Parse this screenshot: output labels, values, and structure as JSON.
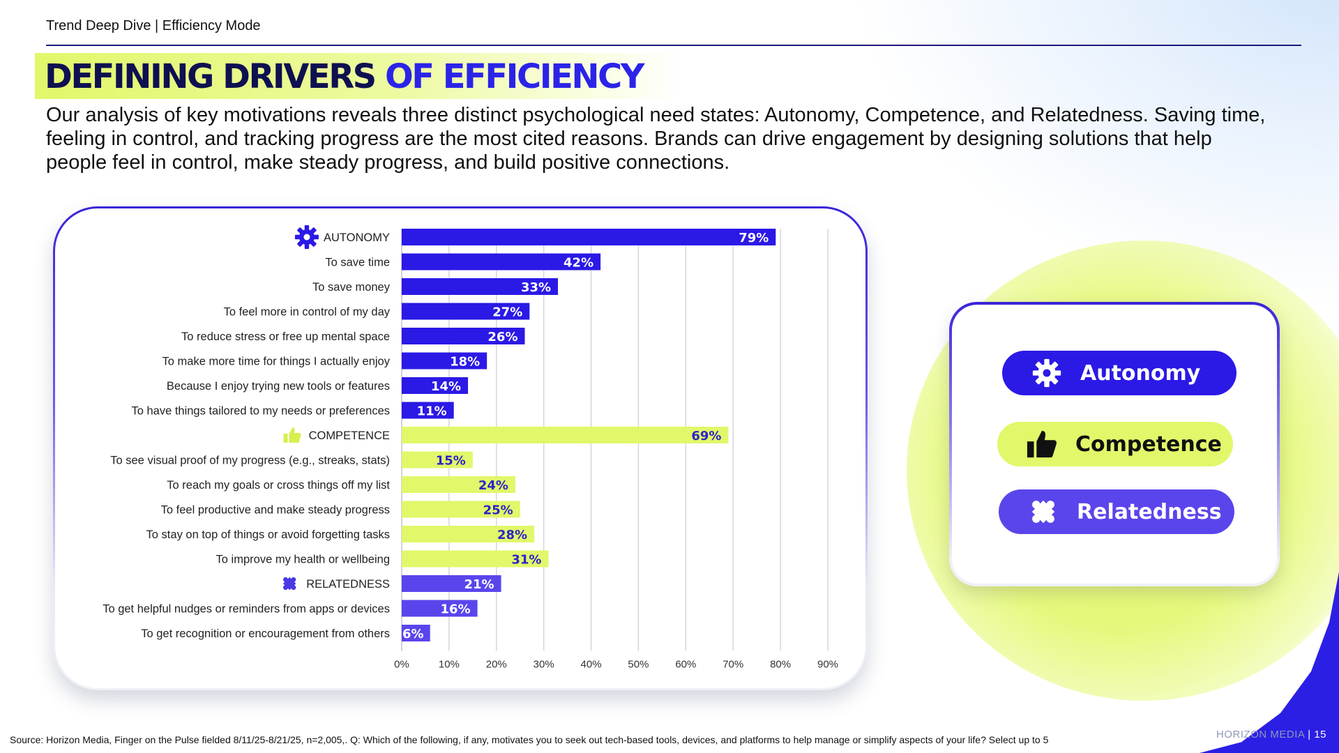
{
  "header": {
    "kicker": "Trend Deep Dive | Efficiency Mode",
    "title_part1": "DEFINING DRIVERS",
    "title_part2": "OF EFFICIENCY"
  },
  "intro": "Our analysis of key motivations reveals three distinct psychological need states: Autonomy, Competence, and Relatedness. Saving time, feeling in control, and tracking progress are the most cited reasons. Brands can drive engagement by designing solutions that help people feel in control, make steady progress, and build positive connections.",
  "colors": {
    "autonomy": "#2b19e6",
    "competence": "#e2f76a",
    "relatedness": "#5a45ec",
    "title_dark": "#0e1050",
    "title_accent": "#2b24e8"
  },
  "chart_data": {
    "type": "bar",
    "orientation": "horizontal",
    "xlim": [
      0,
      90
    ],
    "x_ticks": [
      "0%",
      "10%",
      "20%",
      "30%",
      "40%",
      "50%",
      "60%",
      "70%",
      "80%",
      "90%"
    ],
    "grid": true,
    "value_suffix": "%",
    "groups": [
      {
        "name": "AUTONOMY",
        "icon": "gear-icon",
        "value": 79,
        "items": [
          {
            "label": "To save time",
            "value": 42
          },
          {
            "label": "To save money",
            "value": 33
          },
          {
            "label": "To feel more in control of my day",
            "value": 27
          },
          {
            "label": "To reduce stress or free up mental space",
            "value": 26
          },
          {
            "label": "To make more time for things I actually enjoy",
            "value": 18
          },
          {
            "label": "Because I enjoy trying new tools or features",
            "value": 14
          },
          {
            "label": "To have things tailored to my needs or preferences",
            "value": 11
          }
        ]
      },
      {
        "name": "COMPETENCE",
        "icon": "thumbs-up-icon",
        "value": 69,
        "items": [
          {
            "label": "To see visual proof of my progress (e.g., streaks, stats)",
            "value": 15
          },
          {
            "label": "To reach my goals or cross things off my list",
            "value": 24
          },
          {
            "label": "To feel productive and make steady progress",
            "value": 25
          },
          {
            "label": "To stay on top of things or avoid forgetting tasks",
            "value": 28
          },
          {
            "label": "To improve my health or wellbeing",
            "value": 31
          }
        ]
      },
      {
        "name": "RELATEDNESS",
        "icon": "puzzle-icon",
        "value": 21,
        "items": [
          {
            "label": "To get helpful nudges or reminders from apps or devices",
            "value": 16
          },
          {
            "label": "To get recognition or encouragement from others",
            "value": 6
          }
        ]
      }
    ]
  },
  "legend": {
    "items": [
      {
        "label": "Autonomy",
        "icon": "gear-icon"
      },
      {
        "label": "Competence",
        "icon": "thumbs-up-icon"
      },
      {
        "label": "Relatedness",
        "icon": "puzzle-icon"
      }
    ]
  },
  "footer": {
    "source": "Source: Horizon Media, Finger on the Pulse fielded 8/11/25-8/21/25, n=2,005,. Q: Which of the following, if any, motivates you to seek out tech-based tools, devices, and platforms to help manage or simplify aspects of your life? Select up to 5",
    "brand": "HORIZON MEDIA",
    "page_number": "15"
  }
}
